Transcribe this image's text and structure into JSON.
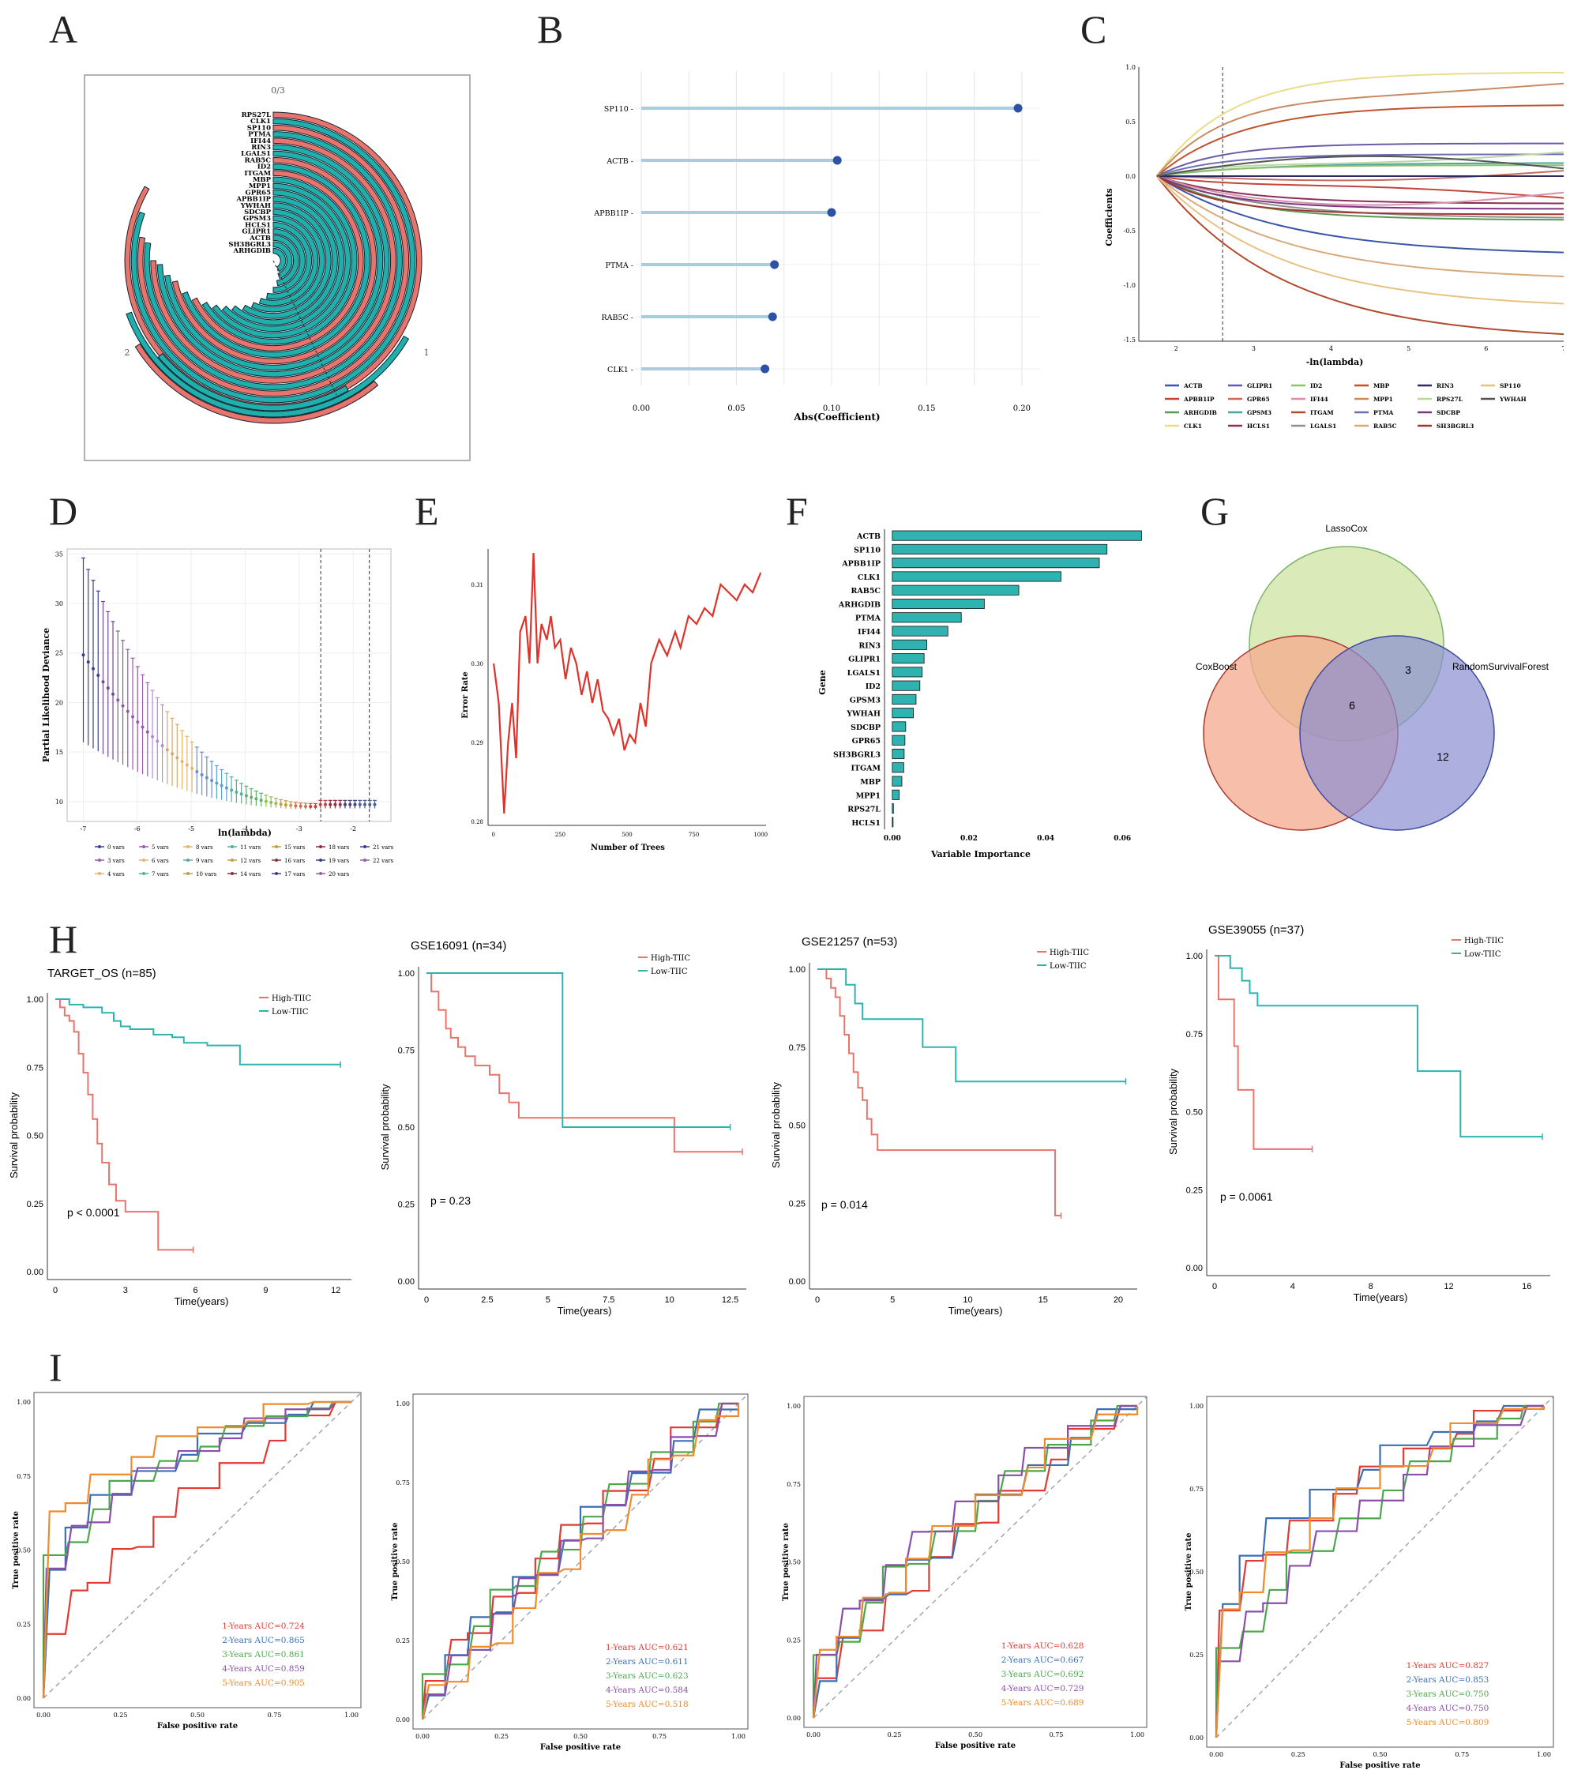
{
  "panel_letters": {
    "A": "A",
    "B": "B",
    "C": "C",
    "D": "D",
    "E": "E",
    "F": "F",
    "G": "G",
    "H": "H",
    "I": "I"
  },
  "colors": {
    "teal": "#1fb0ac",
    "salmon": "#e8746c",
    "steel": "#a9cde0",
    "dot": "#2c52a6",
    "red": "#e0322a",
    "cyan": "#2fb3b0"
  },
  "chart_data": [
    {
      "id": "A",
      "type": "circular-bar",
      "title": "0/3",
      "outer_labels": [
        "0/3",
        "1",
        "2"
      ],
      "genes": [
        "RPS27L",
        "CLK1",
        "SP110",
        "PTMA",
        "IFI44",
        "RIN3",
        "LGALS1",
        "RAB5C",
        "ID2",
        "ITGAM",
        "MBP",
        "MPP1",
        "GPR65",
        "APBB1IP",
        "YWHAH",
        "SDCBP",
        "GPSM3",
        "HCLS1",
        "GLIPR1",
        "ACTB",
        "SH3BGRL3",
        "ARHGDIB"
      ],
      "red_genes": [
        "RPS27L",
        "SP110",
        "IFI44",
        "RAB5C",
        "ITGAM"
      ]
    },
    {
      "id": "B",
      "type": "lollipop",
      "xlabel": "Abs(Coefficient)",
      "categories": [
        "SP110",
        "ACTB",
        "APBB1IP",
        "PTMA",
        "RAB5C",
        "CLK1"
      ],
      "values": [
        0.198,
        0.103,
        0.1,
        0.07,
        0.069,
        0.065
      ],
      "xticks": [
        "0.00",
        "0.05",
        "0.10",
        "0.15",
        "0.20"
      ],
      "xlim": [
        0,
        0.21
      ]
    },
    {
      "id": "C",
      "type": "line",
      "xlabel": "-ln(lambda)",
      "ylabel": "Coefficients",
      "xticks": [
        "2",
        "3",
        "4",
        "5",
        "6",
        "7"
      ],
      "yticks": [
        "1.0",
        "0.5",
        "0.0",
        "-0.5",
        "-1.0",
        "-1.5"
      ],
      "xlim": [
        1.6,
        7
      ],
      "ylim": [
        -1.5,
        1.0
      ],
      "vline": 2.6,
      "series": [
        {
          "name": "ACTB",
          "color": "#3a55a8",
          "end": -0.7
        },
        {
          "name": "APBB1IP",
          "color": "#c2453b",
          "end": -0.2
        },
        {
          "name": "ARHGDIB",
          "color": "#5a9a54",
          "end": -0.4
        },
        {
          "name": "CLK1",
          "color": "#e9dd8c",
          "end": 0.95
        },
        {
          "name": "GLIPR1",
          "color": "#6a5aa8",
          "end": 0.3
        },
        {
          "name": "GPR65",
          "color": "#c36c62",
          "end": 0.05
        },
        {
          "name": "GPSM3",
          "color": "#49a59e",
          "end": 0.12
        },
        {
          "name": "HCLS1",
          "color": "#8a2f59",
          "end": -0.25
        },
        {
          "name": "ID2",
          "color": "#8cc26a",
          "end": 0.1
        },
        {
          "name": "IFI44",
          "color": "#d394a8",
          "end": -0.15
        },
        {
          "name": "ITGAM",
          "color": "#b24a2e",
          "end": -1.45
        },
        {
          "name": "LGALS1",
          "color": "#8f8f8f",
          "end": -0.38
        },
        {
          "name": "MBP",
          "color": "#c0532f",
          "end": 0.65
        },
        {
          "name": "MPP1",
          "color": "#c98a62",
          "end": 0.85
        },
        {
          "name": "PTMA",
          "color": "#6c6fb0",
          "end": 0.2
        },
        {
          "name": "RAB5C",
          "color": "#d8aa7a",
          "end": -0.92
        },
        {
          "name": "RIN3",
          "color": "#2f2a5e",
          "end": 0.0
        },
        {
          "name": "RPS27L",
          "color": "#bcd6a4",
          "end": 0.22
        },
        {
          "name": "SDCBP",
          "color": "#7e3585",
          "end": -0.3
        },
        {
          "name": "SH3BGRL3",
          "color": "#a0362f",
          "end": -0.35
        },
        {
          "name": "SP110",
          "color": "#e8c285",
          "end": -1.17
        },
        {
          "name": "YWHAH",
          "color": "#555555",
          "end": 0.07
        }
      ]
    },
    {
      "id": "D",
      "type": "errorbar",
      "xlabel": "ln(lambda)",
      "ylabel": "Partial Likelihood Deviance",
      "xticks": [
        "-7",
        "-6",
        "-5",
        "-4",
        "-3",
        "-2"
      ],
      "yticks": [
        "35",
        "30",
        "25",
        "20",
        "15",
        "10"
      ],
      "xlim": [
        -7.3,
        -1.3
      ],
      "ylim": [
        8,
        35.5
      ],
      "vlines": [
        -2.6,
        -1.7
      ],
      "legend": [
        "0 vars",
        "5 vars",
        "8 vars",
        "11 vars",
        "15 vars",
        "18 vars",
        "21 vars",
        "3 vars",
        "6 vars",
        "9 vars",
        "12 vars",
        "16 vars",
        "19 vars",
        "22 vars",
        "4 vars",
        "7 vars",
        "10 vars",
        "14 vars",
        "17 vars",
        "20 vars"
      ]
    },
    {
      "id": "E",
      "type": "line",
      "xlabel": "Number of Trees",
      "ylabel": "Error Rate",
      "xticks": [
        "0",
        "250",
        "500",
        "750",
        "1000"
      ],
      "yticks": [
        "0.31",
        "0.30",
        "0.29",
        "0.28"
      ],
      "xlim": [
        -20,
        1020
      ],
      "ylim": [
        0.2795,
        0.3145
      ]
    },
    {
      "id": "F",
      "type": "bar",
      "xlabel": "Variable Importance",
      "ylabel": "Gene",
      "categories": [
        "ACTB",
        "SP110",
        "APBB1IP",
        "CLK1",
        "RAB5C",
        "ARHGDIB",
        "PTMA",
        "IFI44",
        "RIN3",
        "GLIPR1",
        "LGALS1",
        "ID2",
        "GPSM3",
        "YWHAH",
        "SDCBP",
        "GPR65",
        "SH3BGRL3",
        "ITGAM",
        "MBP",
        "MPP1",
        "RPS27L",
        "HCLS1"
      ],
      "values": [
        0.065,
        0.056,
        0.054,
        0.044,
        0.033,
        0.024,
        0.018,
        0.0145,
        0.009,
        0.0083,
        0.0078,
        0.0072,
        0.0062,
        0.0055,
        0.0035,
        0.0033,
        0.0031,
        0.003,
        0.0025,
        0.0018,
        0.0003,
        0.0002
      ],
      "xticks": [
        "0.00",
        "0.02",
        "0.04",
        "0.06"
      ],
      "xlim": [
        -0.001,
        0.068
      ]
    },
    {
      "id": "G",
      "type": "venn",
      "sets": [
        "LassoCox",
        "CoxBoost",
        "RandomSurvivalForest"
      ],
      "counts": {
        "center": "6",
        "lasso_rsf": "3",
        "rsf_only": "12"
      }
    },
    {
      "id": "H",
      "type": "km",
      "plots": [
        {
          "title": "TARGET_OS (n=85)",
          "pvalue": "p < 0.0001",
          "legend": [
            "High-TIIC",
            "Low-TIIC"
          ],
          "xticks": [
            "0",
            "3",
            "6",
            "9",
            "12"
          ],
          "xmax": 12.5,
          "high": [
            [
              0,
              1
            ],
            [
              0.2,
              0.97
            ],
            [
              0.4,
              0.94
            ],
            [
              0.6,
              0.92
            ],
            [
              0.8,
              0.88
            ],
            [
              1.0,
              0.8
            ],
            [
              1.2,
              0.73
            ],
            [
              1.4,
              0.65
            ],
            [
              1.6,
              0.56
            ],
            [
              1.8,
              0.47
            ],
            [
              2.0,
              0.4
            ],
            [
              2.3,
              0.32
            ],
            [
              2.6,
              0.26
            ],
            [
              3.0,
              0.22
            ],
            [
              4.0,
              0.22
            ],
            [
              4.4,
              0.08
            ],
            [
              5.9,
              0.08
            ]
          ],
          "low": [
            [
              0,
              1
            ],
            [
              0.6,
              0.98
            ],
            [
              1.2,
              0.97
            ],
            [
              2.0,
              0.95
            ],
            [
              2.5,
              0.92
            ],
            [
              2.8,
              0.9
            ],
            [
              3.2,
              0.89
            ],
            [
              4.2,
              0.87
            ],
            [
              5.0,
              0.86
            ],
            [
              5.5,
              0.84
            ],
            [
              6.5,
              0.83
            ],
            [
              7.9,
              0.76
            ],
            [
              12.2,
              0.76
            ]
          ]
        },
        {
          "title": "GSE16091 (n=34)",
          "pvalue": "p = 0.23",
          "legend": [
            "High-TIIC",
            "Low-TIIC"
          ],
          "xticks": [
            "0",
            "2.5",
            "5",
            "7.5",
            "10",
            "12.5"
          ],
          "xmax": 13,
          "high": [
            [
              0,
              1
            ],
            [
              0.2,
              0.94
            ],
            [
              0.5,
              0.88
            ],
            [
              0.8,
              0.82
            ],
            [
              1.0,
              0.79
            ],
            [
              1.3,
              0.76
            ],
            [
              1.6,
              0.73
            ],
            [
              2.0,
              0.7
            ],
            [
              2.6,
              0.67
            ],
            [
              3.0,
              0.61
            ],
            [
              3.4,
              0.58
            ],
            [
              3.8,
              0.53
            ],
            [
              10.2,
              0.53
            ],
            [
              10.2,
              0.42
            ],
            [
              13,
              0.42
            ]
          ],
          "low": [
            [
              0,
              1
            ],
            [
              5.6,
              1
            ],
            [
              5.6,
              0.5
            ],
            [
              12.5,
              0.5
            ]
          ]
        },
        {
          "title": "GSE21257 (n=53)",
          "pvalue": "p = 0.014",
          "legend": [
            "High-TIIC",
            "Low-TIIC"
          ],
          "xticks": [
            "0",
            "5",
            "10",
            "15",
            "20"
          ],
          "xmax": 21,
          "high": [
            [
              0,
              1
            ],
            [
              0.6,
              0.97
            ],
            [
              0.9,
              0.94
            ],
            [
              1.2,
              0.91
            ],
            [
              1.5,
              0.85
            ],
            [
              1.8,
              0.79
            ],
            [
              2.1,
              0.73
            ],
            [
              2.4,
              0.67
            ],
            [
              2.7,
              0.62
            ],
            [
              3.0,
              0.58
            ],
            [
              3.3,
              0.52
            ],
            [
              3.6,
              0.47
            ],
            [
              4.0,
              0.42
            ],
            [
              15.8,
              0.42
            ],
            [
              15.8,
              0.21
            ],
            [
              16.2,
              0.21
            ]
          ],
          "low": [
            [
              0,
              1
            ],
            [
              1.9,
              1
            ],
            [
              1.9,
              0.95
            ],
            [
              2.5,
              0.89
            ],
            [
              3.0,
              0.84
            ],
            [
              7.0,
              0.84
            ],
            [
              7.0,
              0.75
            ],
            [
              9.2,
              0.75
            ],
            [
              9.2,
              0.64
            ],
            [
              20.5,
              0.64
            ]
          ]
        },
        {
          "title": "GSE39055 (n=37)",
          "pvalue": "p = 0.0061",
          "legend": [
            "High-TIIC",
            "Low-TIIC"
          ],
          "xticks": [
            "0",
            "4",
            "8",
            "12",
            "16"
          ],
          "xmax": 17,
          "high": [
            [
              0,
              1
            ],
            [
              0.2,
              0.86
            ],
            [
              1.0,
              0.86
            ],
            [
              1.0,
              0.71
            ],
            [
              1.2,
              0.57
            ],
            [
              2.0,
              0.57
            ],
            [
              2.0,
              0.38
            ],
            [
              5.0,
              0.38
            ]
          ],
          "low": [
            [
              0,
              1
            ],
            [
              0.8,
              1
            ],
            [
              0.8,
              0.96
            ],
            [
              1.4,
              0.92
            ],
            [
              1.8,
              0.88
            ],
            [
              2.2,
              0.84
            ],
            [
              10.4,
              0.84
            ],
            [
              10.4,
              0.63
            ],
            [
              12.6,
              0.63
            ],
            [
              12.6,
              0.42
            ],
            [
              16.8,
              0.42
            ]
          ]
        }
      ]
    },
    {
      "id": "I",
      "type": "roc",
      "xlabel": "False positive rate",
      "ylabel": "True positive rate",
      "xticks": [
        "0.00",
        "0.25",
        "0.50",
        "0.75",
        "1.00"
      ],
      "yticks": [
        "1.00",
        "0.75",
        "0.50",
        "0.25",
        "0.00"
      ],
      "colors": [
        "#e03a32",
        "#3a6fb5",
        "#4aa84a",
        "#8a4fa8",
        "#f08a2a"
      ],
      "plots": [
        {
          "labels": [
            "1-Years AUC=0.724",
            "2-Years AUC=0.865",
            "3-Years AUC=0.861",
            "4-Years AUC=0.859",
            "5-Years AUC=0.905"
          ],
          "auc": [
            0.724,
            0.865,
            0.861,
            0.859,
            0.905
          ]
        },
        {
          "labels": [
            "1-Years AUC=0.621",
            "2-Years AUC=0.611",
            "3-Years AUC=0.623",
            "4-Years AUC=0.584",
            "5-Years AUC=0.518"
          ],
          "auc": [
            0.621,
            0.611,
            0.623,
            0.584,
            0.518
          ]
        },
        {
          "labels": [
            "1-Years AUC=0.628",
            "2-Years AUC=0.667",
            "3-Years AUC=0.692",
            "4-Years AUC=0.729",
            "5-Years AUC=0.689"
          ],
          "auc": [
            0.628,
            0.667,
            0.692,
            0.729,
            0.689
          ]
        },
        {
          "labels": [
            "1-Years AUC=0.827",
            "2-Years AUC=0.853",
            "3-Years AUC=0.750",
            "4-Years AUC=0.750",
            "5-Years AUC=0.809"
          ],
          "auc": [
            0.827,
            0.853,
            0.75,
            0.75,
            0.809
          ]
        }
      ]
    }
  ]
}
